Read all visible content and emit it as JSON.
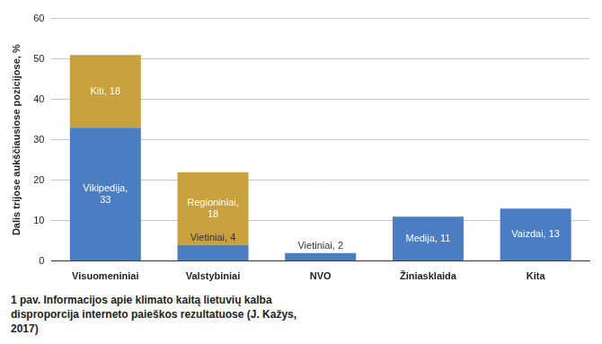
{
  "chart_data": {
    "type": "bar",
    "caption": "1 pav. Informacijos apie klimato kaitą lietuvių kalba disproporcija interneto paieškos rezultatuose (J. Kažys, 2017)",
    "y_label": "Dalis trijose aukščiausiose pozicijose, %",
    "categories": [
      "Visuomeniniai",
      "Valstybiniai",
      "NVO",
      "Žiniasklaida",
      "Kita"
    ],
    "series": [
      {
        "color": "#4a7dc2",
        "values": [
          33,
          4,
          2,
          11,
          13
        ],
        "value_labels": [
          "Vikipedija, 33",
          "Vietiniai, 4",
          "Vietiniai, 2",
          "Medija, 11",
          "Vaizdai, 13"
        ]
      },
      {
        "color": "#c9a13e",
        "values": [
          18,
          18,
          null,
          null,
          null
        ],
        "value_labels": [
          "Kiti, 18",
          "Regioniniai, 18",
          null,
          null,
          null
        ]
      }
    ],
    "stacked": true,
    "data_labels": true,
    "ylim": [
      0,
      60
    ],
    "yticks": [
      0,
      10,
      20,
      30,
      40,
      50,
      60
    ],
    "grid": true
  }
}
